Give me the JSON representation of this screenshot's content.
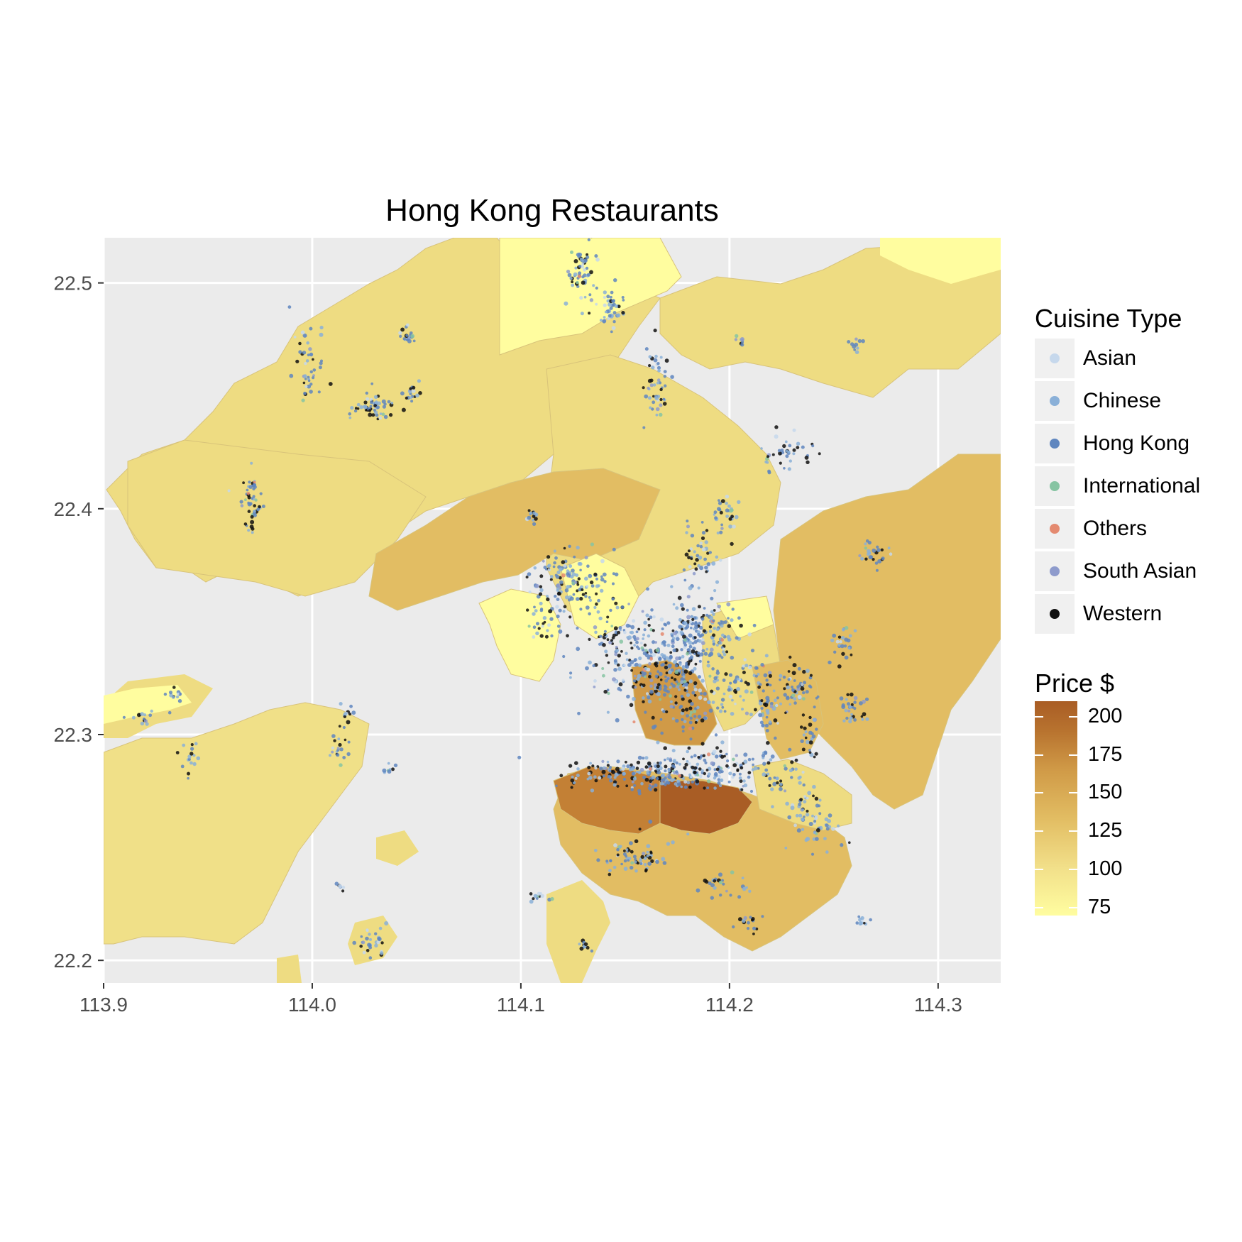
{
  "title": "Hong Kong Restaurants",
  "axes": {
    "x_ticks": [
      "113.9",
      "114.0",
      "114.1",
      "114.2",
      "114.3"
    ],
    "y_ticks": [
      "22.5",
      "22.4",
      "22.3",
      "22.2"
    ],
    "xlim": [
      113.9,
      114.33
    ],
    "ylim": [
      22.19,
      22.52
    ],
    "grid": true
  },
  "cuisine_legend": {
    "title": "Cuisine Type",
    "position": "right",
    "items": [
      {
        "label": "Asian",
        "color": "#c6d8ec"
      },
      {
        "label": "Chinese",
        "color": "#8ab0d8"
      },
      {
        "label": "Hong Kong",
        "color": "#5f86bf"
      },
      {
        "label": "International",
        "color": "#86c4a2"
      },
      {
        "label": "Others",
        "color": "#e48a70"
      },
      {
        "label": "South Asian",
        "color": "#8e9bcc"
      },
      {
        "label": "Western",
        "color": "#111111"
      }
    ]
  },
  "price_legend": {
    "title": "Price $",
    "labels": [
      "200",
      "175",
      "150",
      "125",
      "100",
      "75"
    ],
    "range": [
      70,
      210
    ],
    "low_color": "#fffda0",
    "high_color": "#a95d25"
  },
  "colors": {
    "panel_bg": "#ebebeb",
    "grid": "#ffffff",
    "sea": "#ebebeb"
  }
}
